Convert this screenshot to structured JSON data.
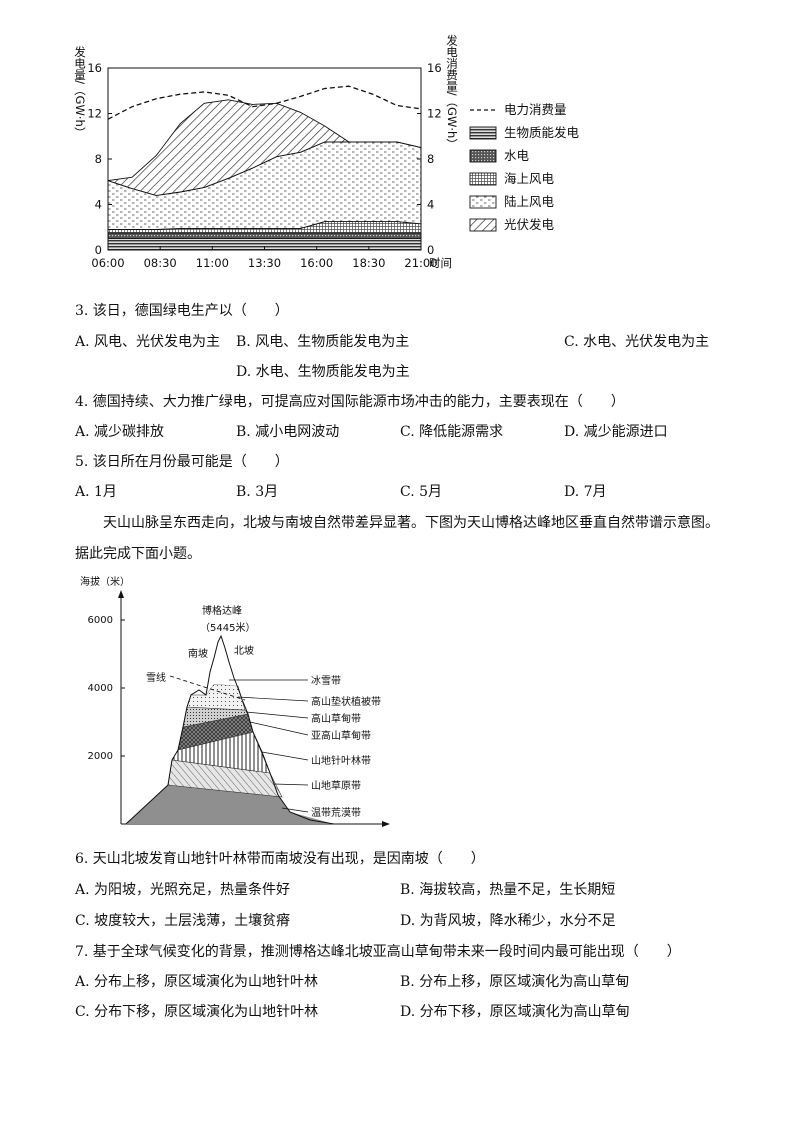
{
  "chart1": {
    "chart_data": {
      "type": "area",
      "x": [
        "06:00",
        "07:15",
        "08:30",
        "09:45",
        "11:00",
        "12:15",
        "13:30",
        "14:45",
        "16:00",
        "17:15",
        "18:30",
        "19:45",
        "21:00",
        "22:00"
      ],
      "x_tick_labels": [
        "06:00",
        "08:30",
        "11:00",
        "13:30",
        "16:00",
        "18:30",
        "21:00"
      ],
      "x_axis_label": "时间",
      "y_left_label": "发电量/（GW·h）",
      "y_right_label": "发电消费量/（GW·h）",
      "ylim": [
        0,
        16
      ],
      "y_ticks": [
        "0",
        "4",
        "8",
        "12",
        "16"
      ],
      "series": [
        {
          "name": "生物质能发电",
          "values": [
            1.0,
            1.0,
            1.0,
            1.0,
            1.0,
            1.0,
            1.0,
            1.0,
            1.0,
            1.0,
            1.0,
            1.0,
            1.0,
            1.0
          ]
        },
        {
          "name": "水电",
          "values": [
            0.5,
            0.5,
            0.5,
            0.5,
            0.5,
            0.5,
            0.5,
            0.5,
            0.5,
            0.5,
            0.5,
            0.5,
            0.5,
            0.5
          ]
        },
        {
          "name": "海上风电",
          "values": [
            0.3,
            0.3,
            0.3,
            0.4,
            0.4,
            0.4,
            0.4,
            0.4,
            0.4,
            1.0,
            1.0,
            1.0,
            1.0,
            0.8
          ]
        },
        {
          "name": "陆上风电",
          "values": [
            4.3,
            3.6,
            3.0,
            3.2,
            3.6,
            4.4,
            5.3,
            6.3,
            6.7,
            7.0,
            7.0,
            7.0,
            7.0,
            6.7
          ]
        },
        {
          "name": "光伏发电",
          "values": [
            0.0,
            1.0,
            3.5,
            6.0,
            7.4,
            6.9,
            5.6,
            4.7,
            3.5,
            1.4,
            0.0,
            0.0,
            0.0,
            0.0
          ]
        }
      ],
      "consumption": {
        "name": "电力消费量",
        "values": [
          11.5,
          12.6,
          13.3,
          13.7,
          13.9,
          13.6,
          12.6,
          12.9,
          13.5,
          14.2,
          14.4,
          13.7,
          12.7,
          12.4
        ]
      }
    }
  },
  "q3": {
    "stem": "3. 该日，德国绿电生产以（　　）",
    "a": "A. 风电、光伏发电为主",
    "b": "B. 风电、生物质能发电为主",
    "c": "C. 水电、光伏发电为主",
    "d": "D. 水电、生物质能发电为主"
  },
  "q4": {
    "stem": "4. 德国持续、大力推广绿电，可提高应对国际能源市场冲击的能力，主要表现在（　　）",
    "a": "A. 减少碳排放",
    "b": "B. 减小电网波动",
    "c": "C. 降低能源需求",
    "d": "D. 减少能源进口"
  },
  "q5": {
    "stem": "5. 该日所在月份最可能是（　　）",
    "a": "A. 1月",
    "b": "B. 3月",
    "c": "C. 5月",
    "d": "D. 7月"
  },
  "passage": {
    "line1": "天山山脉呈东西走向，北坡与南坡自然带差异显著。下图为天山博格达峰地区垂直自然带谱示意图。",
    "line2": "据此完成下面小题。"
  },
  "fig2": {
    "y_axis_label": "海拔（米）",
    "y_ticks": [
      "2000",
      "4000",
      "6000"
    ],
    "peak_name": "博格达峰",
    "peak_height": "（5445米）",
    "south_slope": "南坡",
    "north_slope": "北坡",
    "snow_line": "雪线",
    "zones": [
      "冰雪带",
      "高山垫状植被带",
      "高山草甸带",
      "亚高山草甸带",
      "山地针叶林带",
      "山地草原带",
      "温带荒漠带"
    ]
  },
  "q6": {
    "stem": "6. 天山北坡发育山地针叶林带而南坡没有出现，是因南坡（　　）",
    "a": "A. 为阳坡，光照充足，热量条件好",
    "b": "B. 海拔较高，热量不足，生长期短",
    "c": "C. 坡度较大，土层浅薄，土壤贫瘠",
    "d": "D. 为背风坡，降水稀少，水分不足"
  },
  "q7": {
    "stem": "7. 基于全球气候变化的背景，推测博格达峰北坡亚高山草甸带未来一段时间内最可能出现（　　）",
    "a": "A. 分布上移，原区域演化为山地针叶林",
    "b": "B. 分布上移，原区域演化为高山草甸",
    "c": "C. 分布下移，原区域演化为山地针叶林",
    "d": "D. 分布下移，原区域演化为高山草甸"
  }
}
